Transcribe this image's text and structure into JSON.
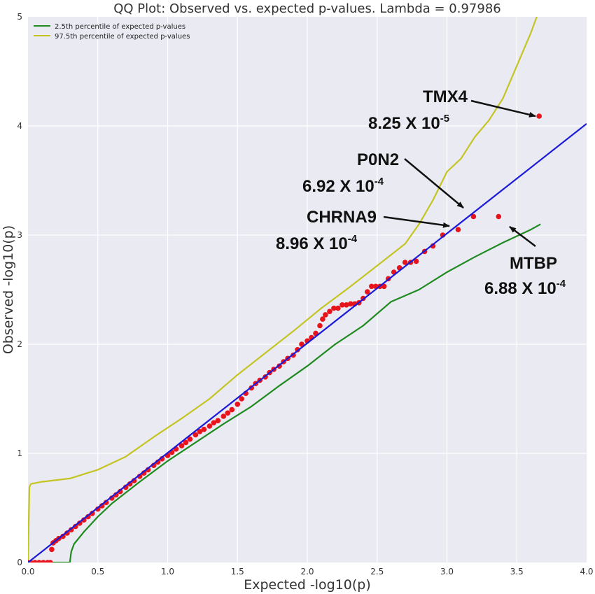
{
  "chart_data": {
    "type": "scatter",
    "title": "QQ Plot: Observed vs. expected p-values. Lambda = 0.97986",
    "xlabel": "Expected -log10(p)",
    "ylabel": "Observed -log10(p)",
    "xlim": [
      0,
      4
    ],
    "ylim": [
      0,
      5
    ],
    "xticks": [
      "0.0",
      "0.5",
      "1.0",
      "1.5",
      "2.0",
      "2.5",
      "3.0",
      "3.5",
      "4.0"
    ],
    "xtick_values": [
      0,
      0.5,
      1,
      1.5,
      2,
      2.5,
      3,
      3.5,
      4
    ],
    "yticks": [
      "0",
      "1",
      "2",
      "3",
      "4",
      "5"
    ],
    "ytick_values": [
      0,
      1,
      2,
      3,
      4,
      5
    ],
    "grid": true,
    "legend_position": "top-left",
    "colors": {
      "background": "#eaeaf2",
      "grid": "#ffffff",
      "points": "#e8141c",
      "reference": "#1a1ad8",
      "lower": "#1f8a1f",
      "upper": "#c4c422"
    },
    "series": [
      {
        "name": "2.5th percentile of expected p-values",
        "kind": "line",
        "x": [
          0.0,
          0.3,
          0.31,
          0.33,
          0.4,
          0.5,
          0.6,
          0.8,
          1.0,
          1.2,
          1.4,
          1.6,
          1.8,
          2.0,
          2.2,
          2.4,
          2.6,
          2.8,
          3.0,
          3.2,
          3.4,
          3.6,
          3.67
        ],
        "y": [
          0.0,
          0.0,
          0.1,
          0.17,
          0.28,
          0.42,
          0.54,
          0.74,
          0.93,
          1.1,
          1.27,
          1.43,
          1.62,
          1.8,
          2.0,
          2.17,
          2.39,
          2.5,
          2.66,
          2.8,
          2.93,
          3.05,
          3.1
        ]
      },
      {
        "name": "97.5th percentile of expected p-values",
        "kind": "line",
        "x": [
          0.0,
          0.01,
          0.02,
          0.1,
          0.3,
          0.5,
          0.7,
          0.9,
          1.1,
          1.3,
          1.5,
          1.7,
          1.9,
          2.1,
          2.3,
          2.5,
          2.7,
          2.8,
          2.9,
          3.0,
          3.1,
          3.2,
          3.3,
          3.4,
          3.5,
          3.6,
          3.7,
          3.8
        ],
        "y": [
          0.0,
          0.69,
          0.72,
          0.74,
          0.77,
          0.85,
          0.97,
          1.15,
          1.32,
          1.5,
          1.72,
          1.92,
          2.12,
          2.33,
          2.52,
          2.72,
          2.92,
          3.1,
          3.32,
          3.58,
          3.7,
          3.9,
          4.05,
          4.25,
          4.55,
          4.85,
          5.2,
          5.7
        ]
      },
      {
        "name": "",
        "kind": "line",
        "x": [
          0,
          4
        ],
        "y": [
          0,
          4.02
        ]
      },
      {
        "name": "",
        "kind": "scatter",
        "x": [
          0.0,
          0.02,
          0.05,
          0.08,
          0.11,
          0.14,
          0.16,
          0.17,
          0.18,
          0.2,
          0.22,
          0.25,
          0.28,
          0.31,
          0.34,
          0.37,
          0.4,
          0.43,
          0.46,
          0.5,
          0.53,
          0.56,
          0.6,
          0.63,
          0.66,
          0.7,
          0.73,
          0.76,
          0.8,
          0.83,
          0.86,
          0.9,
          0.93,
          0.96,
          1.0,
          1.03,
          1.06,
          1.1,
          1.13,
          1.16,
          1.2,
          1.23,
          1.26,
          1.3,
          1.33,
          1.36,
          1.4,
          1.43,
          1.46,
          1.5,
          1.53,
          1.56,
          1.6,
          1.63,
          1.66,
          1.7,
          1.73,
          1.76,
          1.8,
          1.83,
          1.86,
          1.9,
          1.93,
          1.96,
          2.0,
          2.03,
          2.06,
          2.09,
          2.11,
          2.13,
          2.16,
          2.19,
          2.22,
          2.25,
          2.28,
          2.31,
          2.34,
          2.37,
          2.4,
          2.43,
          2.46,
          2.49,
          2.52,
          2.55,
          2.58,
          2.62,
          2.66,
          2.7,
          2.74,
          2.78,
          2.84,
          2.9,
          2.97,
          3.08,
          3.19,
          3.37,
          3.66
        ],
        "y": [
          0.0,
          0.0,
          0.0,
          0.0,
          0.0,
          0.0,
          0.0,
          0.12,
          0.18,
          0.2,
          0.22,
          0.24,
          0.27,
          0.3,
          0.33,
          0.36,
          0.39,
          0.42,
          0.45,
          0.49,
          0.52,
          0.55,
          0.59,
          0.62,
          0.65,
          0.69,
          0.72,
          0.75,
          0.79,
          0.82,
          0.85,
          0.89,
          0.92,
          0.95,
          0.98,
          1.01,
          1.04,
          1.07,
          1.1,
          1.13,
          1.17,
          1.2,
          1.22,
          1.25,
          1.28,
          1.3,
          1.34,
          1.37,
          1.4,
          1.45,
          1.5,
          1.55,
          1.6,
          1.64,
          1.67,
          1.7,
          1.74,
          1.77,
          1.8,
          1.84,
          1.87,
          1.9,
          1.95,
          2.0,
          2.03,
          2.06,
          2.1,
          2.17,
          2.23,
          2.27,
          2.3,
          2.33,
          2.33,
          2.36,
          2.36,
          2.37,
          2.37,
          2.38,
          2.42,
          2.48,
          2.53,
          2.53,
          2.53,
          2.53,
          2.6,
          2.66,
          2.7,
          2.75,
          2.75,
          2.76,
          2.85,
          2.9,
          3.0,
          3.05,
          3.17,
          3.17,
          4.09
        ]
      }
    ],
    "annotations": [
      {
        "gene": "TMX4",
        "mantissa": "8.25 X 10",
        "exponent": "-5",
        "point": [
          3.66,
          4.09
        ]
      },
      {
        "gene": "P0N2",
        "mantissa": "6.92 X 10",
        "exponent": "-4",
        "point": [
          3.14,
          3.23
        ]
      },
      {
        "gene": "CHRNA9",
        "mantissa": "8.96 X 10",
        "exponent": "-4",
        "point": [
          3.03,
          3.07
        ]
      },
      {
        "gene": "MTBP",
        "mantissa": "6.88 X 10",
        "exponent": "-4",
        "point": [
          3.44,
          3.07
        ]
      }
    ]
  }
}
